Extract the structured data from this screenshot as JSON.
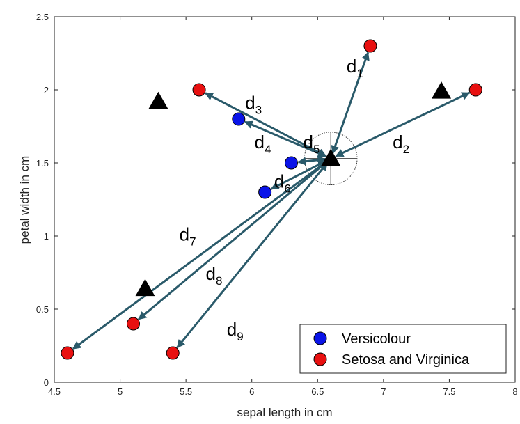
{
  "chart_data": {
    "type": "scatter",
    "xlabel": "sepal length in cm",
    "ylabel": "petal width in cm",
    "xlim": [
      4.5,
      8
    ],
    "ylim": [
      0,
      2.5
    ],
    "xticks": [
      4.5,
      5,
      5.5,
      6,
      6.5,
      7,
      7.5,
      8
    ],
    "yticks": [
      0,
      0.5,
      1,
      1.5,
      2,
      2.5
    ],
    "xtick_labels": [
      "4.5",
      "5",
      "5.5",
      "6",
      "6.5",
      "7",
      "7.5",
      "8"
    ],
    "ytick_labels": [
      "0",
      "0.5",
      "1",
      "1.5",
      "2",
      "2.5"
    ],
    "grid": false,
    "legend_position": "bottom-right",
    "series": [
      {
        "name": "Versicolour",
        "marker": "circle",
        "color": "#0a14e8",
        "points": [
          [
            5.9,
            1.8
          ],
          [
            6.3,
            1.5
          ],
          [
            6.1,
            1.3
          ]
        ]
      },
      {
        "name": "Setosa and Virginica",
        "marker": "circle",
        "color": "#e81010",
        "points": [
          [
            6.9,
            2.3
          ],
          [
            7.7,
            2.0
          ],
          [
            5.6,
            2.0
          ],
          [
            4.6,
            0.2
          ],
          [
            5.1,
            0.4
          ],
          [
            5.4,
            0.2
          ]
        ]
      }
    ],
    "triangles": {
      "color": "#000000",
      "points": [
        [
          5.29,
          1.92
        ],
        [
          7.44,
          1.99
        ],
        [
          5.19,
          0.64
        ],
        [
          6.6,
          1.53
        ]
      ]
    },
    "query_point": [
      6.6,
      1.53
    ],
    "neighborhood_radius": 0.2,
    "arrow_color": "#2a5a6a",
    "distances": [
      {
        "symbol": "d",
        "index": "1",
        "to": [
          6.9,
          2.3
        ],
        "label_at": [
          6.72,
          2.12
        ]
      },
      {
        "symbol": "d",
        "index": "2",
        "to": [
          7.7,
          2.0
        ],
        "label_at": [
          7.07,
          1.6
        ]
      },
      {
        "symbol": "d",
        "index": "3",
        "to": [
          5.6,
          2.0
        ],
        "label_at": [
          5.95,
          1.87
        ]
      },
      {
        "symbol": "d",
        "index": "4",
        "to": [
          5.9,
          1.8
        ],
        "label_at": [
          6.02,
          1.6
        ]
      },
      {
        "symbol": "d",
        "index": "5",
        "to": [
          6.3,
          1.5
        ],
        "label_at": [
          6.39,
          1.6
        ]
      },
      {
        "symbol": "d",
        "index": "6",
        "to": [
          6.1,
          1.3
        ],
        "label_at": [
          6.17,
          1.33
        ]
      },
      {
        "symbol": "d",
        "index": "7",
        "to": [
          4.6,
          0.2
        ],
        "label_at": [
          5.45,
          0.97
        ]
      },
      {
        "symbol": "d",
        "index": "8",
        "to": [
          5.1,
          0.4
        ],
        "label_at": [
          5.65,
          0.7
        ]
      },
      {
        "symbol": "d",
        "index": "9",
        "to": [
          5.4,
          0.2
        ],
        "label_at": [
          5.81,
          0.32
        ]
      }
    ]
  }
}
